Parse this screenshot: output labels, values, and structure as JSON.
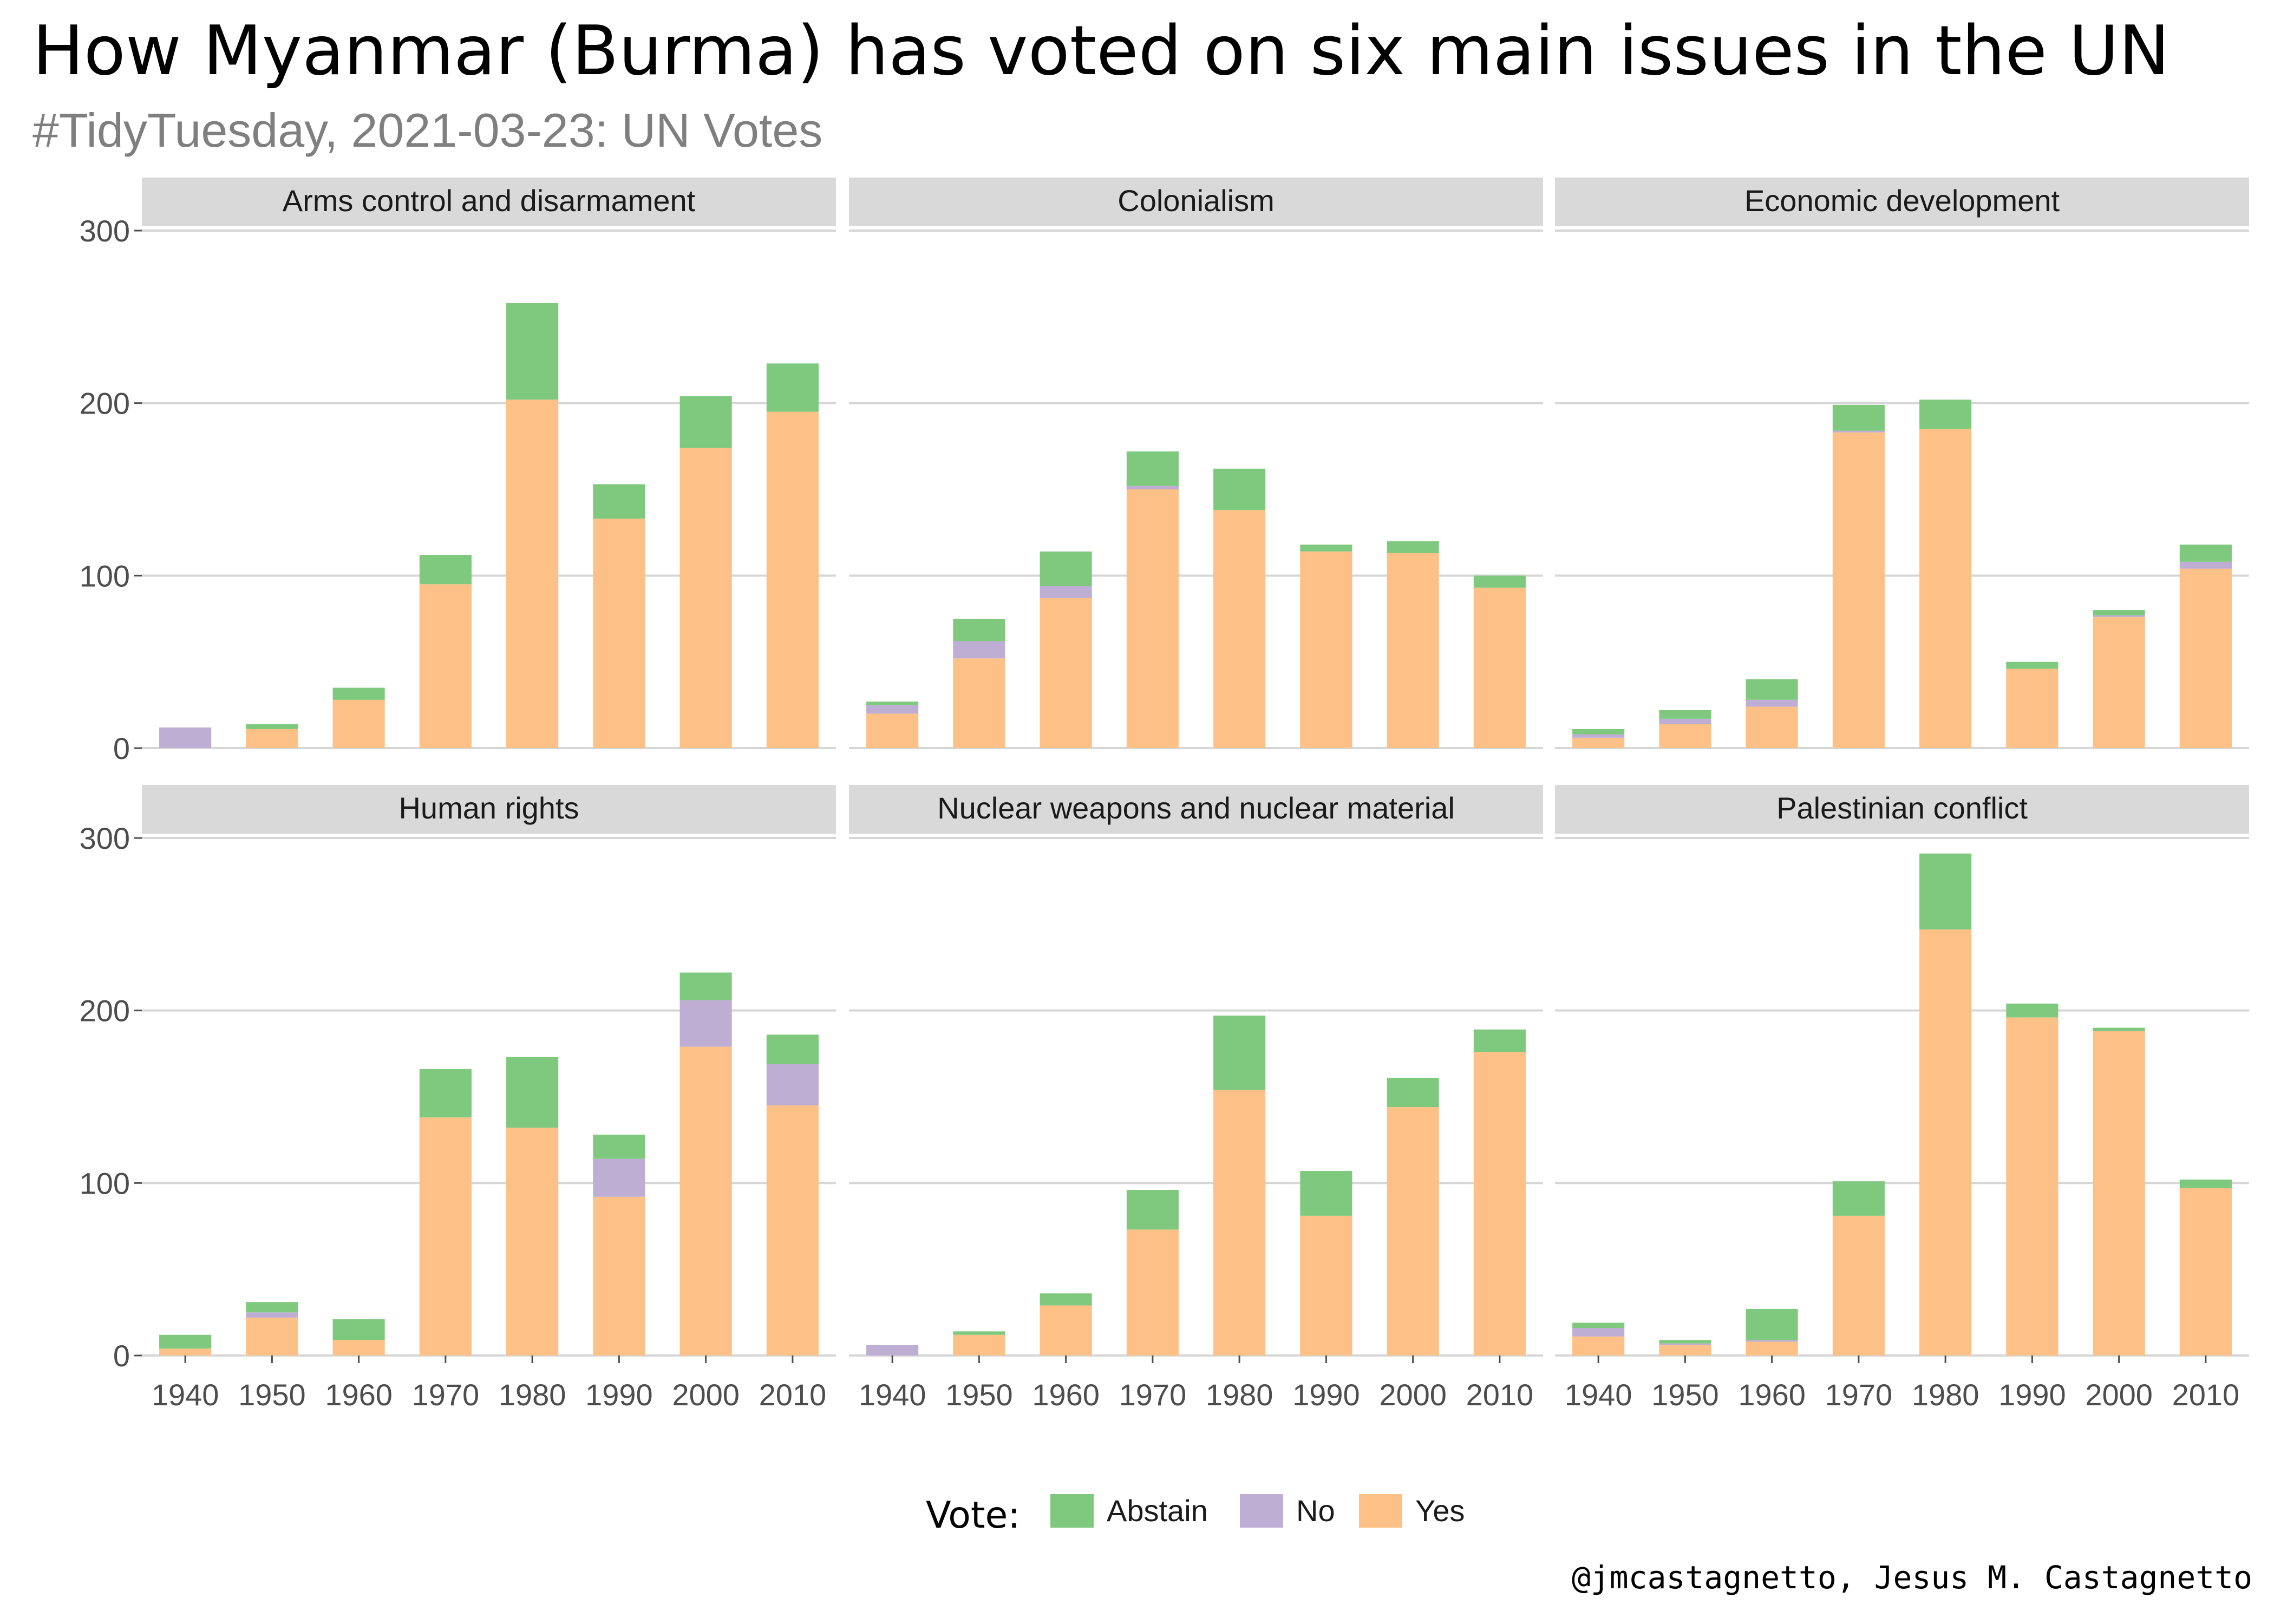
{
  "title": "How Myanmar (Burma) has voted on six main issues in the UN",
  "subtitle": "#TidyTuesday, 2021-03-23: UN Votes",
  "caption": "@jmcastagnetto, Jesus M. Castagnetto",
  "colors": {
    "Abstain": "#7fc97f",
    "No": "#beaed4",
    "Yes": "#fdc086"
  },
  "chart_data": {
    "type": "bar",
    "stacked": true,
    "facets": [
      "Arms control and disarmament",
      "Colonialism",
      "Economic development",
      "Human rights",
      "Nuclear weapons and nuclear material",
      "Palestinian conflict"
    ],
    "categories": [
      "1940",
      "1950",
      "1960",
      "1970",
      "1980",
      "1990",
      "2000",
      "2010"
    ],
    "ylim": [
      0,
      300
    ],
    "yticks": [
      "0",
      "100",
      "200",
      "300"
    ],
    "grid": true,
    "legend": {
      "title": "Vote:",
      "position": "bottom",
      "entries": [
        "Abstain",
        "No",
        "Yes"
      ]
    },
    "panels": [
      {
        "facet": "Arms control and disarmament",
        "series": [
          {
            "name": "Yes",
            "values": [
              0,
              11,
              28,
              95,
              202,
              133,
              174,
              195
            ]
          },
          {
            "name": "No",
            "values": [
              12,
              0,
              0,
              0,
              0,
              0,
              0,
              0
            ]
          },
          {
            "name": "Abstain",
            "values": [
              0,
              3,
              7,
              17,
              56,
              20,
              30,
              28
            ]
          }
        ]
      },
      {
        "facet": "Colonialism",
        "series": [
          {
            "name": "Yes",
            "values": [
              20,
              52,
              87,
              150,
              138,
              114,
              113,
              93
            ]
          },
          {
            "name": "No",
            "values": [
              5,
              10,
              7,
              2,
              0,
              0,
              0,
              0
            ]
          },
          {
            "name": "Abstain",
            "values": [
              2,
              13,
              20,
              20,
              24,
              4,
              7,
              7
            ]
          }
        ]
      },
      {
        "facet": "Economic development",
        "series": [
          {
            "name": "Yes",
            "values": [
              6,
              14,
              24,
              183,
              185,
              46,
              76,
              104
            ]
          },
          {
            "name": "No",
            "values": [
              2,
              3,
              4,
              1,
              0,
              0,
              1,
              4
            ]
          },
          {
            "name": "Abstain",
            "values": [
              3,
              5,
              12,
              15,
              17,
              4,
              3,
              10
            ]
          }
        ]
      },
      {
        "facet": "Human rights",
        "series": [
          {
            "name": "Yes",
            "values": [
              4,
              22,
              9,
              138,
              132,
              92,
              179,
              145
            ]
          },
          {
            "name": "No",
            "values": [
              0,
              3,
              0,
              0,
              0,
              22,
              27,
              24
            ]
          },
          {
            "name": "Abstain",
            "values": [
              8,
              6,
              12,
              28,
              41,
              14,
              16,
              17
            ]
          }
        ]
      },
      {
        "facet": "Nuclear weapons and nuclear material",
        "series": [
          {
            "name": "Yes",
            "values": [
              0,
              12,
              29,
              73,
              154,
              81,
              144,
              176
            ]
          },
          {
            "name": "No",
            "values": [
              6,
              0,
              0,
              0,
              0,
              0,
              0,
              0
            ]
          },
          {
            "name": "Abstain",
            "values": [
              0,
              2,
              7,
              23,
              43,
              26,
              17,
              13
            ]
          }
        ]
      },
      {
        "facet": "Palestinian conflict",
        "series": [
          {
            "name": "Yes",
            "values": [
              11,
              6,
              8,
              81,
              247,
              196,
              188,
              97
            ]
          },
          {
            "name": "No",
            "values": [
              5,
              1,
              1,
              0,
              0,
              0,
              0,
              0
            ]
          },
          {
            "name": "Abstain",
            "values": [
              3,
              2,
              18,
              20,
              44,
              8,
              2,
              5
            ]
          }
        ]
      }
    ]
  }
}
